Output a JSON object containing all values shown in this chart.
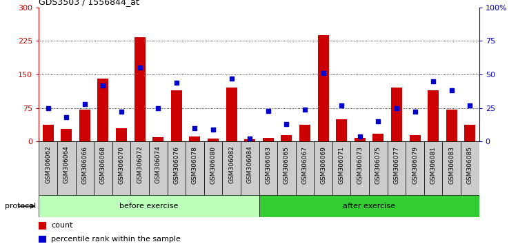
{
  "title": "GDS3503 / 1556844_at",
  "samples": [
    "GSM306062",
    "GSM306064",
    "GSM306066",
    "GSM306068",
    "GSM306070",
    "GSM306072",
    "GSM306074",
    "GSM306076",
    "GSM306078",
    "GSM306080",
    "GSM306082",
    "GSM306084",
    "GSM306063",
    "GSM306065",
    "GSM306067",
    "GSM306069",
    "GSM306071",
    "GSM306073",
    "GSM306075",
    "GSM306077",
    "GSM306079",
    "GSM306081",
    "GSM306083",
    "GSM306085"
  ],
  "counts": [
    38,
    28,
    72,
    140,
    30,
    233,
    10,
    115,
    12,
    7,
    120,
    5,
    8,
    15,
    38,
    238,
    50,
    8,
    18,
    120,
    14,
    115,
    72,
    38
  ],
  "percentile": [
    25,
    18,
    28,
    42,
    22,
    55,
    25,
    44,
    10,
    9,
    47,
    2,
    23,
    13,
    24,
    51,
    27,
    4,
    15,
    25,
    22,
    45,
    38,
    27
  ],
  "before_count": 12,
  "after_count": 12,
  "bar_color": "#cc0000",
  "dot_color": "#0000cc",
  "before_color": "#bbffbb",
  "after_color": "#33cc33",
  "ylim_left": [
    0,
    300
  ],
  "ylim_right": [
    0,
    100
  ],
  "yticks_left": [
    0,
    75,
    150,
    225,
    300
  ],
  "yticks_right": [
    0,
    25,
    50,
    75,
    100
  ],
  "grid_values": [
    75,
    150,
    225
  ],
  "bg_color": "#cccccc",
  "tick_label_fontsize": 6.5,
  "bar_width": 0.6
}
